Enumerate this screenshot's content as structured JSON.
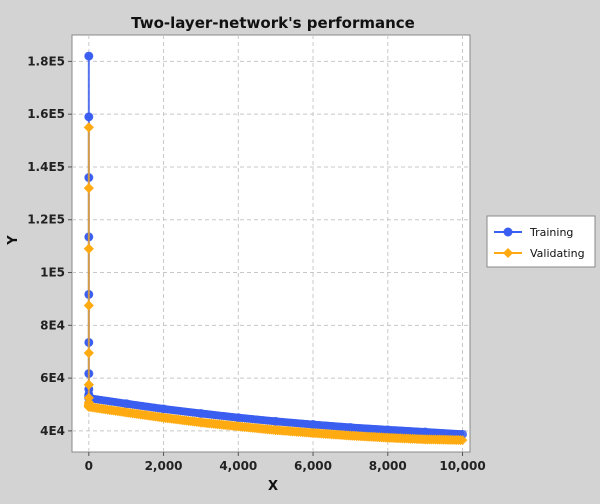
{
  "chart_data": {
    "type": "line",
    "title": "Two-layer-network's performance",
    "xlabel": "X",
    "ylabel": "Y",
    "xlim": [
      -450,
      10200
    ],
    "ylim": [
      32000,
      190000
    ],
    "x_ticks": [
      0,
      2000,
      4000,
      6000,
      8000,
      10000
    ],
    "x_tick_labels": [
      "0",
      "2,000",
      "4,000",
      "6,000",
      "8,000",
      "10,000"
    ],
    "y_ticks": [
      40000,
      60000,
      80000,
      100000,
      120000,
      140000,
      160000,
      180000
    ],
    "y_tick_labels": [
      "4E4",
      "6E4",
      "8E4",
      "1E5",
      "1.2E5",
      "1.4E5",
      "1.6E5",
      "1.8E5"
    ],
    "grid": true,
    "legend_position": "right",
    "series": [
      {
        "name": "Training",
        "color": "#3a5ef0",
        "marker": "circle",
        "x": [
          0,
          0,
          0,
          0,
          0,
          0,
          0,
          0,
          0,
          0,
          0,
          0,
          0,
          1000,
          2000,
          3000,
          4000,
          5000,
          6000,
          7000,
          8000,
          9000,
          10000
        ],
        "y": [
          182000,
          159000,
          136000,
          113500,
          91700,
          73500,
          61700,
          55800,
          53800,
          53200,
          52900,
          52700,
          52400,
          50300,
          48300,
          46600,
          45000,
          43600,
          42400,
          41300,
          40400,
          39600,
          38700
        ]
      },
      {
        "name": "Validating",
        "color": "#ffaa11",
        "marker": "diamond",
        "x": [
          0,
          0,
          0,
          0,
          0,
          0,
          0,
          0,
          0,
          0,
          0,
          0,
          1000,
          2000,
          3000,
          4000,
          5000,
          6000,
          7000,
          8000,
          9000,
          10000
        ],
        "y": [
          155000,
          132000,
          109000,
          87500,
          69500,
          57500,
          52500,
          50800,
          50100,
          49700,
          49400,
          49100,
          47000,
          45000,
          43200,
          41700,
          40300,
          39200,
          38200,
          37400,
          36800,
          36500
        ]
      }
    ]
  }
}
